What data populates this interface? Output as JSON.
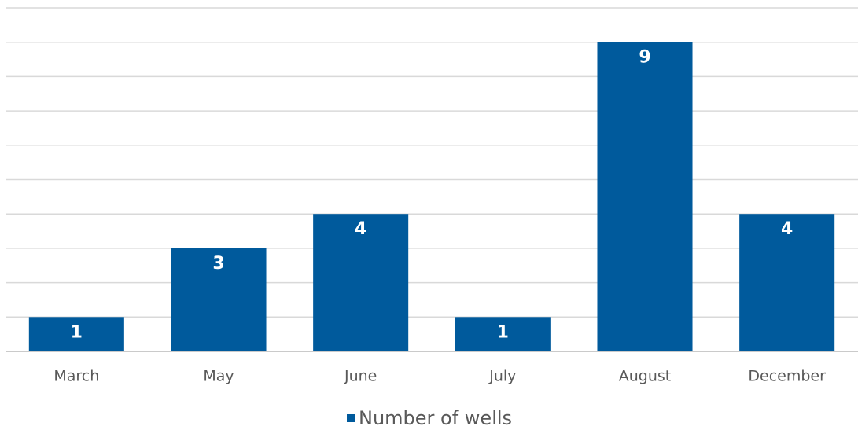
{
  "chart_data": {
    "type": "bar",
    "categories": [
      "March",
      "May",
      "June",
      "July",
      "August",
      "December"
    ],
    "series": [
      {
        "name": "Number of wells",
        "color": "#005a9c",
        "values": [
          1,
          3,
          4,
          1,
          9,
          4
        ]
      }
    ],
    "ylim": [
      0,
      10
    ],
    "yticks": [
      0,
      1,
      2,
      3,
      4,
      5,
      6,
      7,
      8,
      9,
      10
    ],
    "grid": true,
    "legend": "bottom"
  }
}
